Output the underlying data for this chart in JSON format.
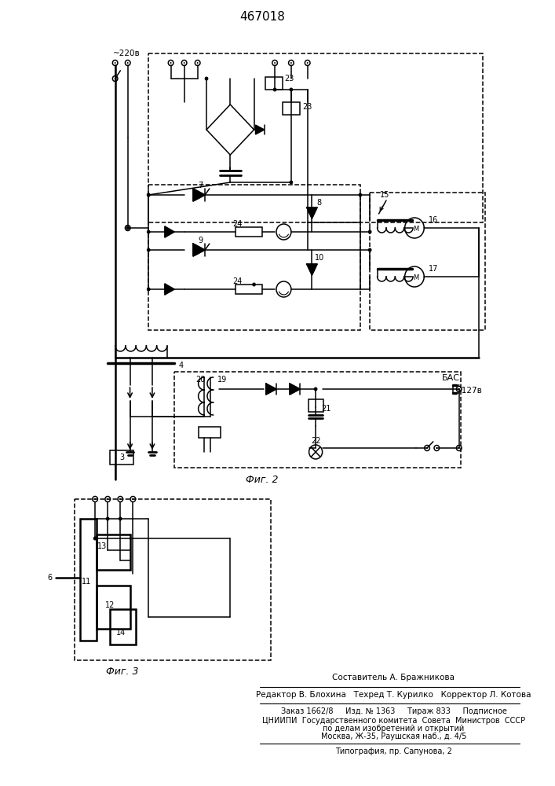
{
  "title": "467018",
  "background_color": "#ffffff",
  "fig2_label": "Фиг. 2",
  "fig3_label": "Фиг. 3",
  "voltage_label": "~220в",
  "voltage2_label": "~127в",
  "bac_label": "БАС",
  "label_4": "4",
  "label_6": "6",
  "label_3": "3",
  "label_7": "7",
  "label_8": "8",
  "label_9": "9",
  "label_10": "10",
  "label_11": "11",
  "label_12": "12",
  "label_13": "13",
  "label_14": "14",
  "label_15": "15",
  "label_16": "16",
  "label_17": "17",
  "label_19": "19",
  "label_20": "20",
  "label_21": "21",
  "label_22": "22",
  "label_23a": "23",
  "label_23b": "23",
  "label_24a": "24",
  "label_24b": "24",
  "footer_line1": "Составитель А. Бражникова",
  "footer_line2": "Редактор В. Блохина   Техред Т. Курилко   Корректор Л. Котова",
  "footer_line3": "Заказ 1662/8     Изд. № 1363     Тираж 833     Подписное",
  "footer_line4": "ЦНИИПИ  Государственного комитета  Совета  Министров  СССР",
  "footer_line5": "по делам изобретений и открытий",
  "footer_line6": "Москва, Ж-35, Раушская наб., д. 4/5",
  "footer_line7": "Типография, пр. Сапунова, 2"
}
